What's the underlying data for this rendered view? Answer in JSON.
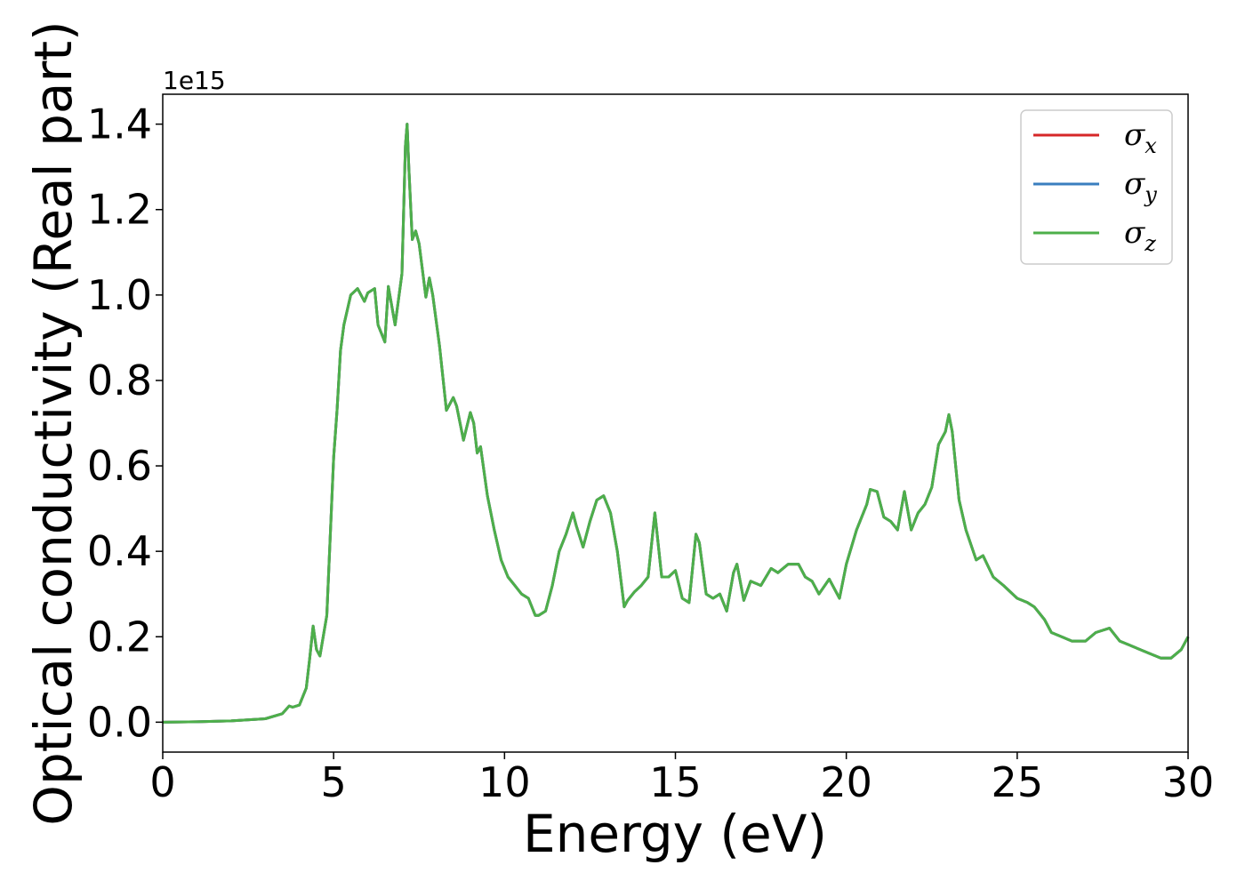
{
  "chart_data": {
    "type": "line",
    "xlabel": "Energy (eV)",
    "ylabel": "Optical conductivity (Real part)",
    "y_offset_text": "1e15",
    "xlim": [
      0,
      30
    ],
    "ylim": [
      -0.07,
      1.47
    ],
    "xticks": [
      0,
      5,
      10,
      15,
      20,
      25,
      30
    ],
    "xtick_labels": [
      "0",
      "5",
      "10",
      "15",
      "20",
      "25",
      "30"
    ],
    "yticks": [
      0.0,
      0.2,
      0.4,
      0.6,
      0.8,
      1.0,
      1.2,
      1.4
    ],
    "ytick_labels": [
      "0.0",
      "0.2",
      "0.4",
      "0.6",
      "0.8",
      "1.0",
      "1.2",
      "1.4"
    ],
    "grid": false,
    "legend_position": "top-right",
    "legend": [
      {
        "symbol": "σ",
        "sub": "x",
        "color": "#d62728"
      },
      {
        "symbol": "σ",
        "sub": "y",
        "color": "#3a7ebf"
      },
      {
        "symbol": "σ",
        "sub": "z",
        "color": "#4daf4a"
      }
    ],
    "series_colors": [
      "#d62728",
      "#3a7ebf",
      "#4daf4a"
    ],
    "x": [
      0,
      1,
      2,
      3,
      3.5,
      3.7,
      3.8,
      4.0,
      4.2,
      4.3,
      4.4,
      4.5,
      4.6,
      4.8,
      5.0,
      5.1,
      5.2,
      5.3,
      5.5,
      5.7,
      5.9,
      6.0,
      6.2,
      6.3,
      6.5,
      6.6,
      6.8,
      7.0,
      7.1,
      7.15,
      7.2,
      7.3,
      7.4,
      7.5,
      7.7,
      7.8,
      7.9,
      8.1,
      8.3,
      8.5,
      8.6,
      8.8,
      9.0,
      9.1,
      9.2,
      9.3,
      9.5,
      9.7,
      9.9,
      10.1,
      10.3,
      10.5,
      10.7,
      10.9,
      11.0,
      11.2,
      11.4,
      11.6,
      11.8,
      12.0,
      12.1,
      12.3,
      12.5,
      12.7,
      12.9,
      13.1,
      13.3,
      13.5,
      13.6,
      13.8,
      14.0,
      14.2,
      14.4,
      14.6,
      14.8,
      15.0,
      15.2,
      15.4,
      15.6,
      15.7,
      15.9,
      16.1,
      16.3,
      16.5,
      16.7,
      16.8,
      17.0,
      17.2,
      17.5,
      17.8,
      18.0,
      18.3,
      18.6,
      18.8,
      19.0,
      19.2,
      19.5,
      19.8,
      20.0,
      20.3,
      20.6,
      20.7,
      20.9,
      21.1,
      21.3,
      21.5,
      21.7,
      21.9,
      22.1,
      22.3,
      22.5,
      22.7,
      22.9,
      23.0,
      23.1,
      23.3,
      23.5,
      23.8,
      24.0,
      24.3,
      24.6,
      25.0,
      25.3,
      25.5,
      25.8,
      26.0,
      26.3,
      26.6,
      27.0,
      27.3,
      27.7,
      28.0,
      28.3,
      28.6,
      28.9,
      29.2,
      29.5,
      29.8,
      30.0
    ],
    "series": [
      {
        "values": [
          0,
          0.001,
          0.003,
          0.008,
          0.02,
          0.038,
          0.035,
          0.04,
          0.08,
          0.15,
          0.225,
          0.17,
          0.155,
          0.25,
          0.62,
          0.73,
          0.87,
          0.93,
          1.0,
          1.015,
          0.985,
          1.005,
          1.015,
          0.93,
          0.89,
          1.02,
          0.93,
          1.05,
          1.35,
          1.4,
          1.3,
          1.13,
          1.15,
          1.12,
          0.995,
          1.04,
          1.0,
          0.88,
          0.73,
          0.76,
          0.74,
          0.66,
          0.725,
          0.7,
          0.63,
          0.645,
          0.53,
          0.45,
          0.38,
          0.34,
          0.32,
          0.3,
          0.29,
          0.25,
          0.25,
          0.26,
          0.32,
          0.4,
          0.44,
          0.49,
          0.46,
          0.41,
          0.47,
          0.52,
          0.53,
          0.49,
          0.4,
          0.27,
          0.285,
          0.305,
          0.32,
          0.34,
          0.49,
          0.34,
          0.34,
          0.355,
          0.29,
          0.28,
          0.44,
          0.42,
          0.3,
          0.29,
          0.3,
          0.26,
          0.35,
          0.37,
          0.285,
          0.33,
          0.32,
          0.36,
          0.35,
          0.37,
          0.37,
          0.34,
          0.33,
          0.3,
          0.335,
          0.29,
          0.37,
          0.45,
          0.51,
          0.545,
          0.54,
          0.48,
          0.47,
          0.45,
          0.54,
          0.45,
          0.49,
          0.51,
          0.55,
          0.65,
          0.68,
          0.72,
          0.68,
          0.52,
          0.45,
          0.38,
          0.39,
          0.34,
          0.32,
          0.29,
          0.28,
          0.27,
          0.24,
          0.21,
          0.2,
          0.19,
          0.19,
          0.21,
          0.22,
          0.19,
          0.18,
          0.17,
          0.16,
          0.15,
          0.15,
          0.17,
          0.2
        ]
      }
    ]
  }
}
